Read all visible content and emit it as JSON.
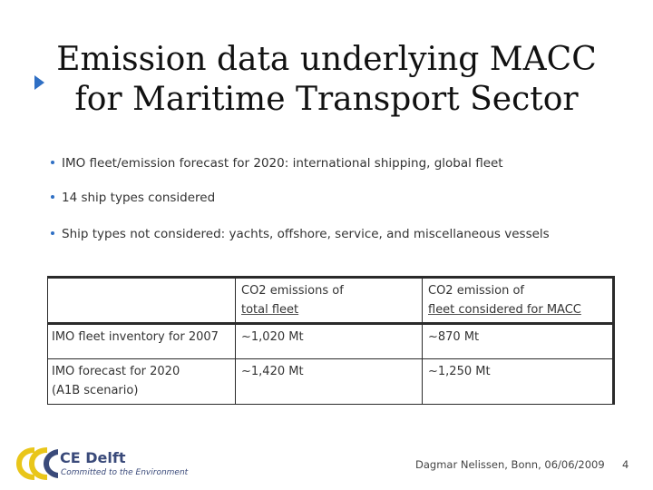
{
  "slide": {
    "title_line1": "Emission data underlying MACC",
    "title_line2": "for Maritime Transport Sector",
    "bullets": [
      "IMO fleet/emission forecast for 2020: international shipping, global fleet",
      "14 ship types considered",
      "Ship types not considered: yachts, offshore, service, and miscellaneous vessels"
    ],
    "table": {
      "headers": [
        "",
        [
          "CO2 emissions of",
          "total fleet"
        ],
        [
          "CO2 emission of",
          "fleet considered for MACC"
        ]
      ],
      "rows": [
        [
          [
            "IMO fleet inventory for 2007"
          ],
          [
            "~1,020 Mt"
          ],
          [
            "~870 Mt"
          ]
        ],
        [
          [
            "IMO forecast for 2020",
            "(A1B scenario)"
          ],
          [
            "~1,420 Mt"
          ],
          [
            "~1,250 Mt"
          ]
        ]
      ]
    },
    "logo": {
      "name": "CE Delft",
      "tagline": "Committed to the Environment"
    },
    "footer": "Dagmar Nelissen, Bonn, 06/06/2009",
    "page_number": "4",
    "colors": {
      "accent": "#2f6fc4",
      "logo_yellow": "#e9c61a",
      "logo_text": "#3a4a7a"
    }
  }
}
